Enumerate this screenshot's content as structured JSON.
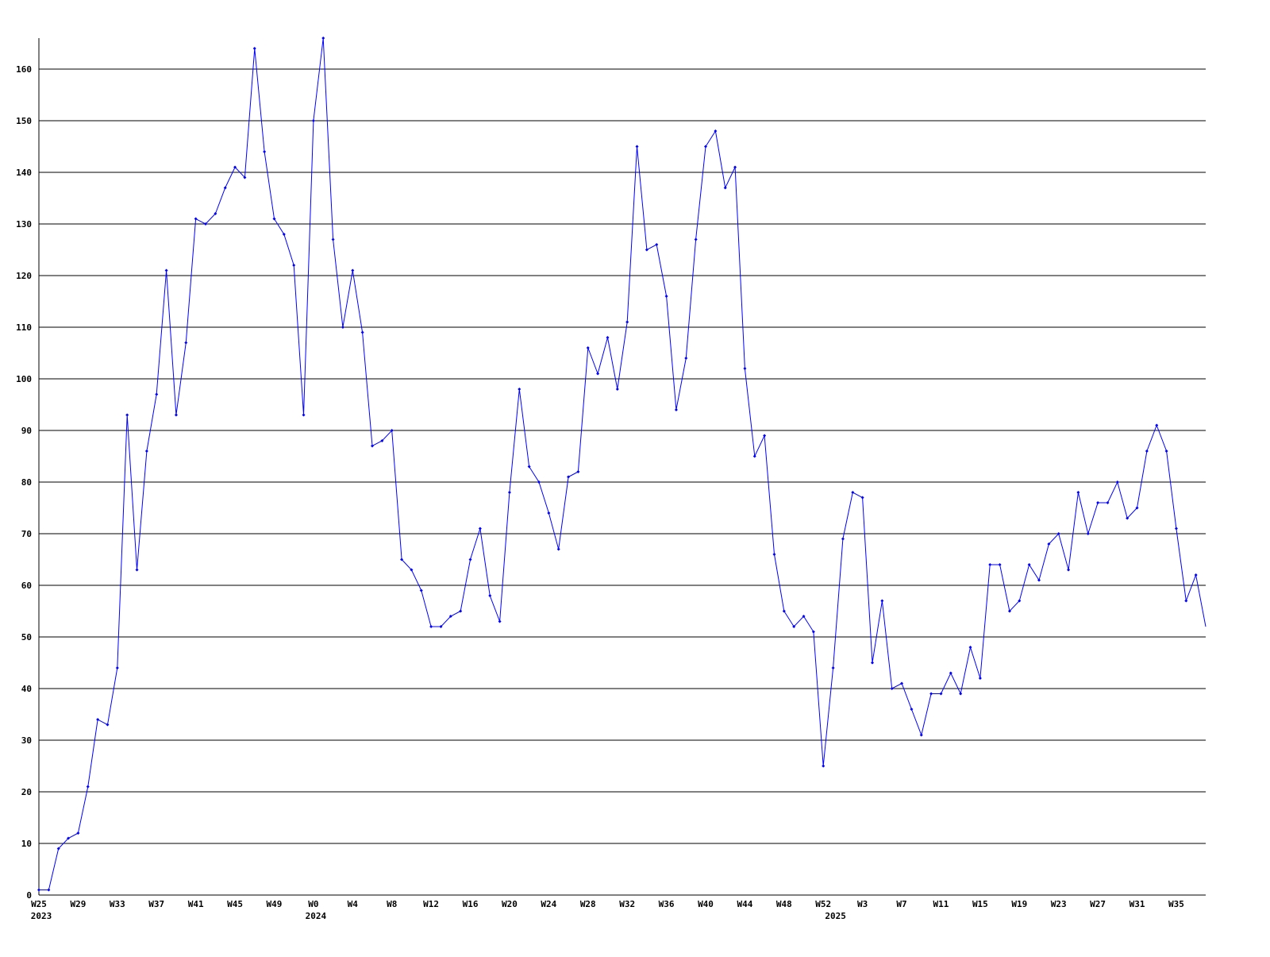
{
  "chart_data": {
    "type": "line",
    "title": "",
    "xlabel": "",
    "ylabel": "",
    "ylim": [
      0,
      166
    ],
    "y_ticks": [
      0,
      10,
      20,
      30,
      40,
      50,
      60,
      70,
      80,
      90,
      100,
      110,
      120,
      130,
      140,
      150,
      160
    ],
    "grid": "horizontal",
    "line_color": "#0000ff",
    "grid_color": "#000000",
    "categories": [
      "W25",
      "W26",
      "W27",
      "W28",
      "W29",
      "W30",
      "W31",
      "W32",
      "W33",
      "W34",
      "W35",
      "W36",
      "W37",
      "W38",
      "W39",
      "W40",
      "W41",
      "W42",
      "W43",
      "W44",
      "W45",
      "W46",
      "W47",
      "W48",
      "W49",
      "W50",
      "W51",
      "W52",
      "W0",
      "W1",
      "W2",
      "W3",
      "W4",
      "W5",
      "W6",
      "W7",
      "W8",
      "W9",
      "W10",
      "W11",
      "W12",
      "W13",
      "W14",
      "W15",
      "W16",
      "W17",
      "W18",
      "W19",
      "W20",
      "W21",
      "W22",
      "W23",
      "W24",
      "W25",
      "W26",
      "W27",
      "W28",
      "W29",
      "W30",
      "W31",
      "W32",
      "W33",
      "W34",
      "W35",
      "W36",
      "W37",
      "W38",
      "W39",
      "W40",
      "W41",
      "W42",
      "W43",
      "W44",
      "W45",
      "W46",
      "W47",
      "W48",
      "W49",
      "W50",
      "W51",
      "W52",
      "W0",
      "W1",
      "W2",
      "W3",
      "W4",
      "W5",
      "W6",
      "W7",
      "W8",
      "W9",
      "W10",
      "W11",
      "W12",
      "W13",
      "W14",
      "W15",
      "W16",
      "W17",
      "W18",
      "W19",
      "W20",
      "W21",
      "W22",
      "W23",
      "W24",
      "W25",
      "W26",
      "W27",
      "W28",
      "W29",
      "W30",
      "W31",
      "W32",
      "W33",
      "W34",
      "W35",
      "W36",
      "W37",
      "W38"
    ],
    "values": [
      1,
      1,
      9,
      11,
      12,
      21,
      34,
      33,
      44,
      93,
      63,
      86,
      97,
      121,
      93,
      107,
      131,
      130,
      132,
      137,
      141,
      139,
      164,
      144,
      131,
      128,
      122,
      93,
      150,
      166,
      127,
      110,
      121,
      109,
      87,
      88,
      90,
      65,
      63,
      59,
      52,
      52,
      54,
      55,
      65,
      71,
      58,
      53,
      78,
      98,
      83,
      80,
      74,
      67,
      81,
      82,
      106,
      101,
      108,
      98,
      111,
      145,
      125,
      126,
      116,
      94,
      104,
      127,
      145,
      148,
      137,
      141,
      102,
      85,
      89,
      66,
      55,
      52,
      54,
      51,
      25,
      44,
      69,
      78,
      77,
      45,
      57,
      40,
      41,
      36,
      31,
      39,
      39,
      43,
      39,
      48,
      42,
      64,
      64,
      55,
      57,
      64,
      61,
      68,
      70,
      63,
      78,
      70,
      76,
      76,
      80,
      73,
      75,
      86,
      91,
      86,
      71,
      57,
      62,
      52
    ],
    "x_tick_every": 4,
    "year_labels": [
      {
        "label": "2023",
        "at": "W25"
      },
      {
        "label": "2024",
        "at": "W0"
      },
      {
        "label": "2025",
        "at": "W0"
      }
    ]
  }
}
